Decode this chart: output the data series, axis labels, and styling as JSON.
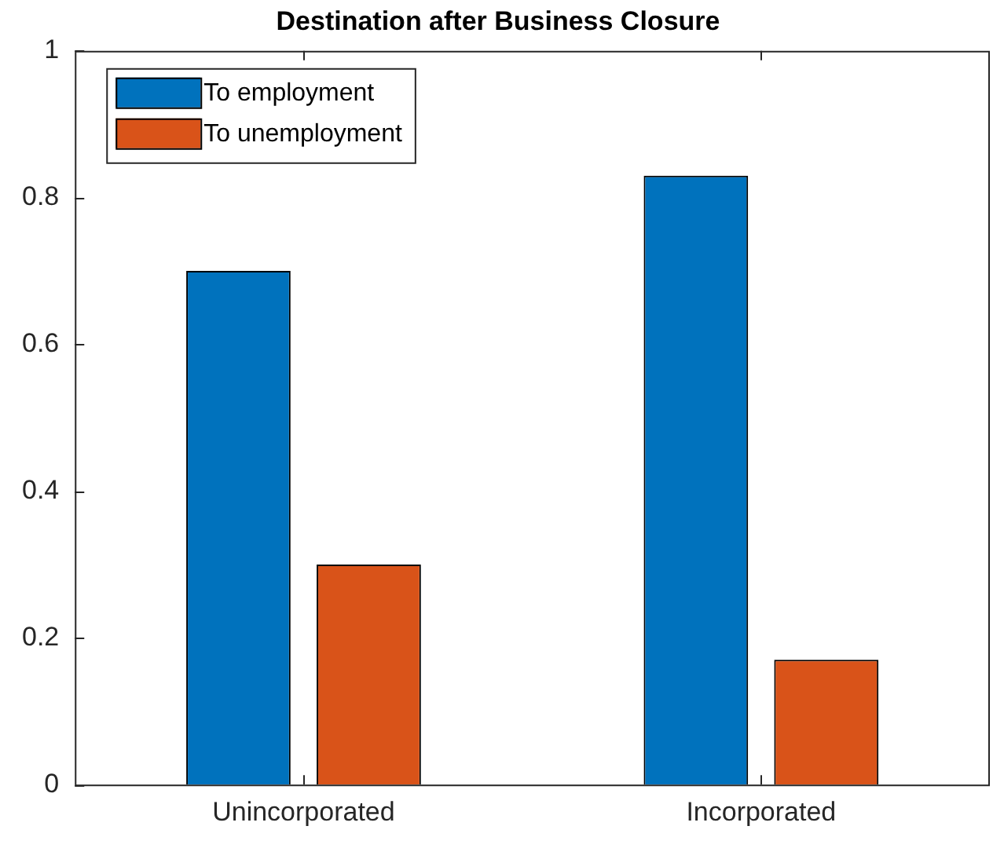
{
  "chart_data": {
    "type": "bar",
    "title": "Destination after Business Closure",
    "categories": [
      "Unincorporated",
      "Incorporated"
    ],
    "series": [
      {
        "name": "To employment",
        "color": "#0072bd",
        "values": [
          0.7,
          0.83
        ]
      },
      {
        "name": "To unemployment",
        "color": "#d95319",
        "values": [
          0.3,
          0.17
        ]
      }
    ],
    "ylim": [
      0,
      1
    ],
    "yticks": [
      0,
      0.2,
      0.4,
      0.6,
      0.8,
      1
    ],
    "grid": false,
    "legend": "top left"
  }
}
